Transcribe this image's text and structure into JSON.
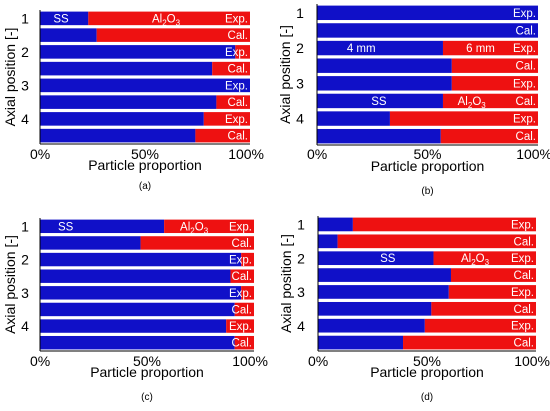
{
  "colors": {
    "blue": "#1010C8",
    "red": "#EE1111",
    "bg": "#ffffff",
    "text": "#000000"
  },
  "chart_data": [
    {
      "type": "bar",
      "subplot_label": "(a)",
      "ylabel": "Axial position [-]",
      "xlabel": "Particle proportion",
      "xlim": [
        0,
        100
      ],
      "x_ticks": [
        "0%",
        "50%",
        "100%"
      ],
      "y_ticks": [
        "1",
        "2",
        "3",
        "4"
      ],
      "categories": [
        "1 Exp.",
        "1 Cal.",
        "2 Exp.",
        "2 Cal.",
        "3 Exp.",
        "3 Cal.",
        "4 Exp.",
        "4 Cal."
      ],
      "bar_labels": [
        "Exp.",
        "Cal.",
        "Exp.",
        "Cal.",
        "Exp.",
        "Cal.",
        "Exp.",
        "Cal."
      ],
      "series": [
        {
          "color": "blue",
          "values": [
            23,
            27,
            93,
            82,
            100,
            84,
            78,
            74
          ]
        },
        {
          "color": "red",
          "values": [
            77,
            73,
            7,
            18,
            0,
            16,
            22,
            26
          ]
        }
      ],
      "annotations": [
        {
          "bar": 0,
          "x": 10,
          "text": "SS"
        },
        {
          "bar": 0,
          "x": 60,
          "text": "Al",
          "sub": "2",
          "text2": "O",
          "sub2": "3"
        }
      ]
    },
    {
      "type": "bar",
      "subplot_label": "(b)",
      "ylabel": "Axial position [-]",
      "xlabel": "Particle proportion",
      "xlim": [
        0,
        100
      ],
      "x_ticks": [
        "0%",
        "50%",
        "100%"
      ],
      "y_ticks": [
        "1",
        "2",
        "3",
        "4"
      ],
      "categories": [
        "1 Exp.",
        "1 Cal.",
        "2 Exp.",
        "2 Cal.",
        "3 Exp.",
        "3 Cal.",
        "4 Exp.",
        "4 Cal."
      ],
      "bar_labels": [
        "Exp.",
        "Cal.",
        "Exp.",
        "Cal.",
        "Exp.",
        "Cal.",
        "Exp.",
        "Cal."
      ],
      "series": [
        {
          "color": "blue",
          "values": [
            100,
            100,
            57,
            61,
            61,
            57,
            33,
            56
          ]
        },
        {
          "color": "red",
          "values": [
            0,
            0,
            43,
            39,
            39,
            43,
            67,
            44
          ]
        }
      ],
      "annotations": [
        {
          "bar": 2,
          "x": 20,
          "text": "4 mm"
        },
        {
          "bar": 2,
          "x": 74,
          "text": "6 mm"
        },
        {
          "bar": 5,
          "x": 28,
          "text": "SS"
        },
        {
          "bar": 5,
          "x": 70,
          "text": "Al",
          "sub": "2",
          "text2": "O",
          "sub2": "3"
        }
      ]
    },
    {
      "type": "bar",
      "subplot_label": "(c)",
      "ylabel": "Axial position [-]",
      "xlabel": "Particle proportion",
      "xlim": [
        0,
        100
      ],
      "x_ticks": [
        "0%",
        "50%",
        "100%"
      ],
      "y_ticks": [
        "1",
        "2",
        "3",
        "4"
      ],
      "categories": [
        "1 Exp.",
        "1 Cal.",
        "2 Exp.",
        "2 Cal.",
        "3 Exp.",
        "3 Cal.",
        "4 Exp.",
        "4 Cal."
      ],
      "bar_labels": [
        "Exp.",
        "Cal.",
        "Exp.",
        "Cal.",
        "Exp.",
        "Cal.",
        "Exp.",
        "Cal."
      ],
      "series": [
        {
          "color": "blue",
          "values": [
            58,
            47,
            94,
            89,
            94,
            91,
            87,
            91
          ]
        },
        {
          "color": "red",
          "values": [
            42,
            53,
            6,
            11,
            6,
            9,
            13,
            9
          ]
        }
      ],
      "annotations": [
        {
          "bar": 0,
          "x": 12,
          "text": "SS"
        },
        {
          "bar": 0,
          "x": 72,
          "text": "Al",
          "sub": "2",
          "text2": "O",
          "sub2": "3"
        }
      ]
    },
    {
      "type": "bar",
      "subplot_label": "(d)",
      "ylabel": "Axial position [-]",
      "xlabel": "Particle proportion",
      "xlim": [
        0,
        100
      ],
      "x_ticks": [
        "0%",
        "50%",
        "100%"
      ],
      "y_ticks": [
        "1",
        "2",
        "3",
        "4"
      ],
      "categories": [
        "1 Exp.",
        "1 Cal.",
        "2 Exp.",
        "2 Cal.",
        "3 Exp.",
        "3 Cal.",
        "4 Exp.",
        "4 Cal."
      ],
      "bar_labels": [
        "Exp.",
        "Cal.",
        "Exp.",
        "Cal.",
        "Exp.",
        "Cal.",
        "Exp.",
        "Cal."
      ],
      "series": [
        {
          "color": "blue",
          "values": [
            16,
            9,
            53,
            61,
            60,
            52,
            49,
            39
          ]
        },
        {
          "color": "red",
          "values": [
            84,
            91,
            47,
            39,
            40,
            48,
            51,
            61
          ]
        }
      ],
      "annotations": [
        {
          "bar": 2,
          "x": 32,
          "text": "SS"
        },
        {
          "bar": 2,
          "x": 72,
          "text": "Al",
          "sub": "2",
          "text2": "O",
          "sub2": "3"
        }
      ]
    }
  ]
}
